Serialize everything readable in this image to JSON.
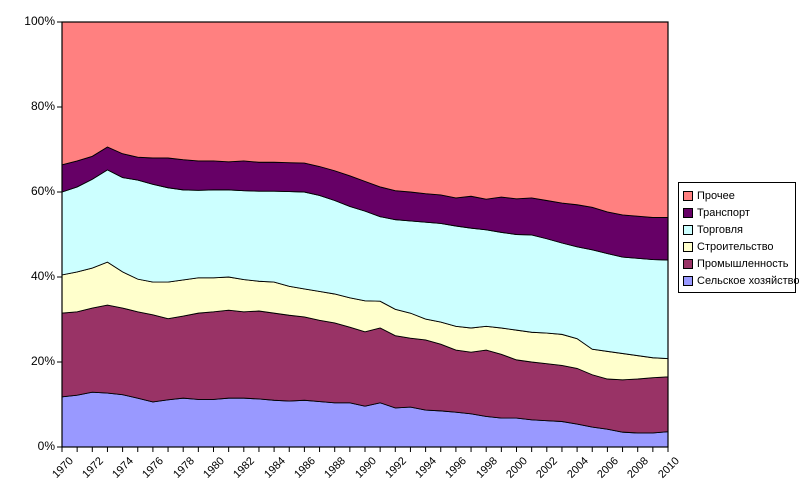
{
  "chart": {
    "y_axis": {
      "tick_labels": [
        "100%",
        "80%",
        "60%",
        "40%",
        "20%",
        "0%"
      ]
    },
    "x_axis": {
      "tick_labels": [
        "1970",
        "1972",
        "1974",
        "1976",
        "1978",
        "1980",
        "1982",
        "1984",
        "1986",
        "1988",
        "1990",
        "1992",
        "1994",
        "1996",
        "1998",
        "2000",
        "2002",
        "2004",
        "2006",
        "2008",
        "2010"
      ]
    },
    "legend": {
      "items": [
        {
          "label": "Прочее",
          "color": "#FF8080"
        },
        {
          "label": "Транспорт",
          "color": "#660066"
        },
        {
          "label": "Торговля",
          "color": "#CCFFFF"
        },
        {
          "label": "Строительство",
          "color": "#FFFFCC"
        },
        {
          "label": "Промышленность",
          "color": "#993366"
        },
        {
          "label": "Сельское хозяйство",
          "color": "#9999FF"
        }
      ]
    },
    "colors": {
      "plot_border": "#000000",
      "series_outline": "#000000",
      "background": "#ffffff"
    }
  },
  "chart_data": {
    "type": "area",
    "stacking": "percent",
    "title": "",
    "xlabel": "",
    "ylabel": "",
    "ylim": [
      0,
      100
    ],
    "grid": false,
    "legend_position": "right",
    "x": [
      1970,
      1971,
      1972,
      1973,
      1974,
      1975,
      1976,
      1977,
      1978,
      1979,
      1980,
      1981,
      1982,
      1983,
      1984,
      1985,
      1986,
      1987,
      1988,
      1989,
      1990,
      1991,
      1992,
      1993,
      1994,
      1995,
      1996,
      1997,
      1998,
      1999,
      2000,
      2001,
      2002,
      2003,
      2004,
      2005,
      2006,
      2007,
      2008,
      2009,
      2010
    ],
    "series": [
      {
        "name": "Сельское хозяйство",
        "key": "agriculture",
        "color": "#9999FF",
        "values": [
          11.8,
          12.2,
          12.9,
          12.7,
          12.3,
          11.5,
          10.6,
          11.1,
          11.5,
          11.2,
          11.2,
          11.5,
          11.5,
          11.3,
          11.0,
          10.8,
          11.0,
          10.7,
          10.4,
          10.4,
          9.6,
          10.4,
          9.2,
          9.4,
          8.7,
          8.5,
          8.2,
          7.8,
          7.2,
          6.8,
          6.8,
          6.4,
          6.2,
          6.0,
          5.4,
          4.7,
          4.2,
          3.5,
          3.3,
          3.3,
          3.6
        ]
      },
      {
        "name": "Промышленность",
        "key": "industry",
        "color": "#993366",
        "values": [
          19.7,
          19.6,
          19.8,
          20.7,
          20.4,
          20.3,
          20.5,
          19.1,
          19.3,
          20.3,
          20.6,
          20.7,
          20.3,
          20.7,
          20.5,
          20.2,
          19.6,
          19.1,
          18.8,
          17.8,
          17.5,
          17.6,
          17.0,
          16.2,
          16.5,
          15.7,
          14.6,
          14.5,
          15.6,
          15.0,
          13.7,
          13.6,
          13.4,
          13.2,
          13.1,
          12.3,
          11.8,
          12.3,
          12.7,
          13.0,
          12.9
        ]
      },
      {
        "name": "Строительство",
        "key": "construction",
        "color": "#FFFFCC",
        "values": [
          9.0,
          9.4,
          9.4,
          10.1,
          8.5,
          7.7,
          7.7,
          8.6,
          8.5,
          8.3,
          8.0,
          7.8,
          7.6,
          7.0,
          7.3,
          6.8,
          6.6,
          6.8,
          6.8,
          6.9,
          7.3,
          6.3,
          6.2,
          5.9,
          4.9,
          5.2,
          5.6,
          5.7,
          5.6,
          6.2,
          7.0,
          7.0,
          7.2,
          7.3,
          7.0,
          6.0,
          6.5,
          6.2,
          5.5,
          4.7,
          4.3
        ]
      },
      {
        "name": "Торговля",
        "key": "trade",
        "color": "#CCFFFF",
        "values": [
          19.5,
          20.0,
          20.9,
          21.7,
          22.2,
          23.3,
          23.0,
          22.2,
          21.2,
          20.6,
          20.7,
          20.5,
          20.9,
          21.2,
          21.4,
          22.3,
          22.8,
          22.6,
          22.0,
          21.5,
          21.1,
          19.9,
          21.1,
          21.7,
          22.8,
          23.2,
          23.6,
          23.5,
          22.7,
          22.5,
          22.5,
          22.9,
          22.2,
          21.5,
          21.6,
          23.4,
          23.0,
          22.7,
          22.9,
          23.1,
          23.2
        ]
      },
      {
        "name": "Транспорт",
        "key": "transport",
        "color": "#660066",
        "values": [
          6.4,
          6.1,
          5.4,
          5.4,
          5.6,
          5.4,
          6.2,
          7.0,
          7.1,
          6.9,
          6.8,
          6.6,
          7.0,
          6.8,
          6.8,
          6.8,
          6.8,
          6.8,
          7.0,
          7.2,
          7.0,
          7.0,
          6.8,
          6.8,
          6.7,
          6.7,
          6.6,
          7.5,
          7.2,
          8.3,
          8.4,
          8.7,
          9.0,
          9.4,
          9.9,
          10.0,
          9.8,
          9.9,
          9.9,
          9.9,
          10.0
        ]
      },
      {
        "name": "Прочее",
        "key": "other",
        "color": "#FF8080",
        "values": [
          33.6,
          32.7,
          31.6,
          29.4,
          31.0,
          31.8,
          32.0,
          32.0,
          32.4,
          32.7,
          32.7,
          32.9,
          32.7,
          33.0,
          33.0,
          33.1,
          33.2,
          34.0,
          35.0,
          36.2,
          37.5,
          38.8,
          39.7,
          40.0,
          40.4,
          40.7,
          41.4,
          41.0,
          41.7,
          41.2,
          41.6,
          41.4,
          42.0,
          42.6,
          43.0,
          43.6,
          44.7,
          45.4,
          45.7,
          46.0,
          46.0
        ]
      }
    ]
  }
}
